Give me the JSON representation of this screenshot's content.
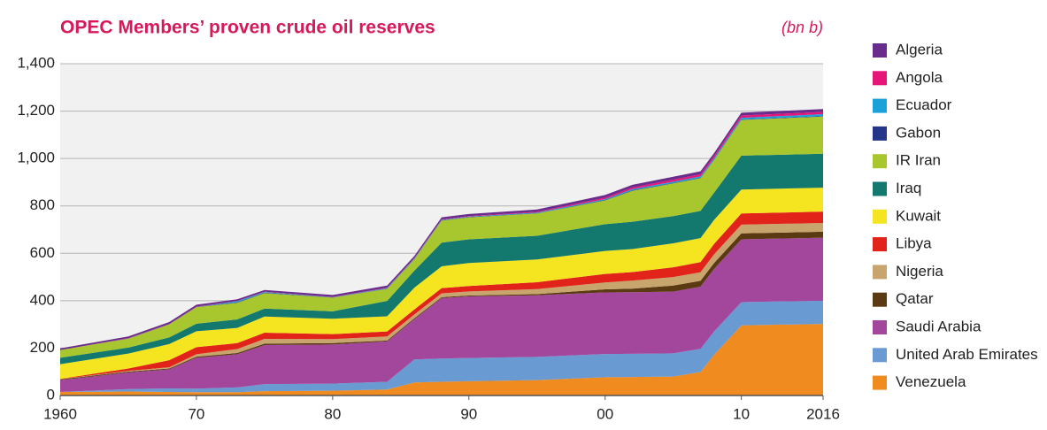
{
  "chart_data": {
    "type": "stacked_area",
    "title": "OPEC Members’ proven crude oil reserves",
    "subtitle": "(bn b)",
    "x": [
      1960,
      1965,
      1968,
      1970,
      1973,
      1975,
      1980,
      1984,
      1986,
      1988,
      1990,
      1995,
      2000,
      2002,
      2005,
      2007,
      2008,
      2010,
      2016
    ],
    "xlim": [
      1960,
      2016
    ],
    "xticks": [
      1960,
      {
        "value": 1970,
        "label": "70"
      },
      {
        "value": 1980,
        "label": "80"
      },
      {
        "value": 1990,
        "label": "90"
      },
      {
        "value": 2000,
        "label": "00"
      },
      {
        "value": 2010,
        "label": "10"
      },
      2016
    ],
    "ylim": [
      0,
      1400
    ],
    "yticks": [
      0,
      200,
      400,
      600,
      800,
      {
        "value": 1000,
        "label": "1,000"
      },
      {
        "value": 1200,
        "label": "1,200"
      },
      {
        "value": 1400,
        "label": "1,400"
      }
    ],
    "grid": true,
    "legend": "right",
    "series": [
      {
        "name": "Algeria",
        "color": "#6a2c8c",
        "values": [
          7,
          7,
          8,
          8,
          7,
          7,
          8,
          9,
          9,
          9,
          9,
          10,
          11,
          11,
          12,
          12,
          12,
          12,
          12
        ]
      },
      {
        "name": "Angola",
        "color": "#e5157a",
        "values": [
          0,
          1,
          1,
          1,
          1,
          1,
          1,
          2,
          2,
          2,
          2,
          3,
          6,
          7,
          9,
          9,
          9,
          9.5,
          9.5
        ]
      },
      {
        "name": "Ecuador",
        "color": "#1ba1d9",
        "values": [
          0,
          0,
          0,
          0,
          5,
          3,
          1,
          2,
          2,
          2,
          2,
          3,
          4,
          5,
          5,
          6,
          6,
          7,
          8
        ]
      },
      {
        "name": "Gabon",
        "color": "#23368a",
        "values": [
          0,
          1,
          1,
          1,
          2,
          2,
          1,
          1,
          1,
          1,
          1,
          1,
          2,
          2,
          2,
          2,
          2,
          2,
          2
        ]
      },
      {
        "name": "IR Iran",
        "color": "#a8c62e",
        "values": [
          33,
          38,
          55,
          70,
          70,
          65,
          58,
          51,
          48,
          93,
          93,
          94,
          100,
          131,
          138,
          138,
          138,
          151,
          157
        ]
      },
      {
        "name": "Iraq",
        "color": "#13786e",
        "values": [
          27,
          25,
          28,
          32,
          36,
          34,
          31,
          65,
          72,
          100,
          100,
          100,
          113,
          115,
          115,
          115,
          115,
          143,
          143
        ]
      },
      {
        "name": "Kuwait",
        "color": "#f4e520",
        "values": [
          62,
          63,
          68,
          67,
          64,
          68,
          65,
          64,
          92,
          92,
          97,
          96,
          97,
          97,
          101,
          101,
          101,
          101,
          101
        ]
      },
      {
        "name": "Libya",
        "color": "#e2231a",
        "values": [
          1,
          10,
          30,
          30,
          25,
          26,
          21,
          21,
          21,
          22,
          23,
          29,
          36,
          36,
          41,
          43,
          44,
          47,
          48
        ]
      },
      {
        "name": "Nigeria",
        "color": "#c9a56e",
        "values": [
          1,
          3,
          5,
          10,
          17,
          20,
          17,
          17,
          16,
          16,
          17,
          21,
          29,
          34,
          36,
          36,
          37,
          37,
          37
        ]
      },
      {
        "name": "Qatar",
        "color": "#5a3a12",
        "values": [
          3,
          4,
          4,
          5,
          5,
          6,
          6,
          4,
          4,
          4,
          4,
          5,
          13,
          15,
          26,
          25,
          25,
          25,
          25
        ]
      },
      {
        "name": "Saudi Arabia",
        "color": "#a3479d",
        "values": [
          50,
          70,
          80,
          130,
          140,
          165,
          165,
          170,
          170,
          255,
          260,
          260,
          260,
          260,
          260,
          262,
          264,
          265,
          266
        ]
      },
      {
        "name": "United Arab Emirates",
        "color": "#6a9ad2",
        "values": [
          0,
          10,
          15,
          15,
          20,
          30,
          30,
          33,
          97,
          98,
          98,
          98,
          98,
          98,
          98,
          98,
          98,
          98,
          98
        ]
      },
      {
        "name": "Venezuela",
        "color": "#ef8b1f",
        "values": [
          15,
          17,
          15,
          14,
          14,
          18,
          20,
          25,
          55,
          58,
          60,
          65,
          77,
          78,
          80,
          99,
          172,
          296,
          302
        ]
      }
    ]
  }
}
